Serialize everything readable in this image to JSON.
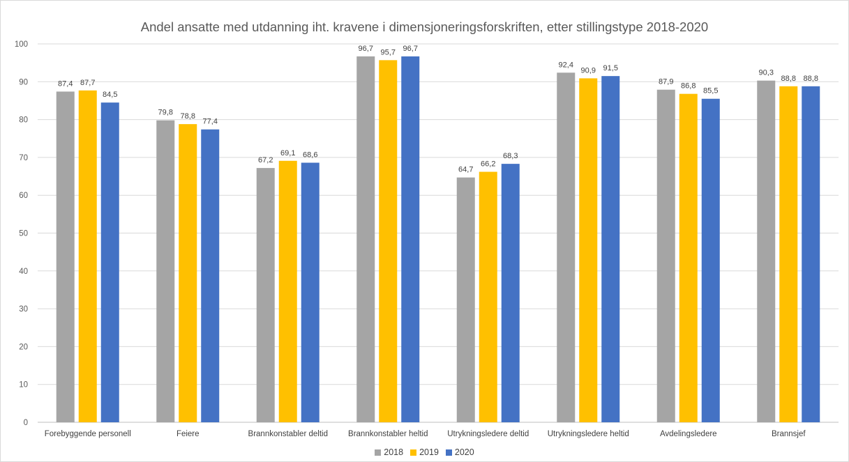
{
  "chart_data": {
    "type": "bar",
    "title": "Andel ansatte med utdanning iht. kravene i dimensjoneringsforskriften, etter stillingstype 2018-2020",
    "xlabel": "",
    "ylabel": "",
    "ylim": [
      0,
      100
    ],
    "yticks": [
      "0",
      "10",
      "20",
      "30",
      "40",
      "50",
      "60",
      "70",
      "80",
      "90",
      "100"
    ],
    "grid": true,
    "legend_position": "bottom",
    "categories": [
      "Forebyggende personell",
      "Feiere",
      "Brannkonstabler deltid",
      "Brannkonstabler heltid",
      "Utrykningsledere deltid",
      "Utrykningsledere heltid",
      "Avdelingsledere",
      "Brannsjef"
    ],
    "series": [
      {
        "name": "2018",
        "color": "#a5a5a5",
        "values": [
          87.4,
          79.8,
          67.2,
          96.7,
          64.7,
          92.4,
          87.9,
          90.3
        ],
        "labels": [
          "87,4",
          "79,8",
          "67,2",
          "96,7",
          "64,7",
          "92,4",
          "87,9",
          "90,3"
        ]
      },
      {
        "name": "2019",
        "color": "#ffc000",
        "values": [
          87.7,
          78.8,
          69.1,
          95.7,
          66.2,
          90.9,
          86.8,
          88.8
        ],
        "labels": [
          "87,7",
          "78,8",
          "69,1",
          "95,7",
          "66,2",
          "90,9",
          "86,8",
          "88,8"
        ]
      },
      {
        "name": "2020",
        "color": "#4472c4",
        "values": [
          84.5,
          77.4,
          68.6,
          96.7,
          68.3,
          91.5,
          85.5,
          88.8
        ],
        "labels": [
          "84,5",
          "77,4",
          "68,6",
          "96,7",
          "68,3",
          "91,5",
          "85,5",
          "88,8"
        ]
      }
    ]
  }
}
